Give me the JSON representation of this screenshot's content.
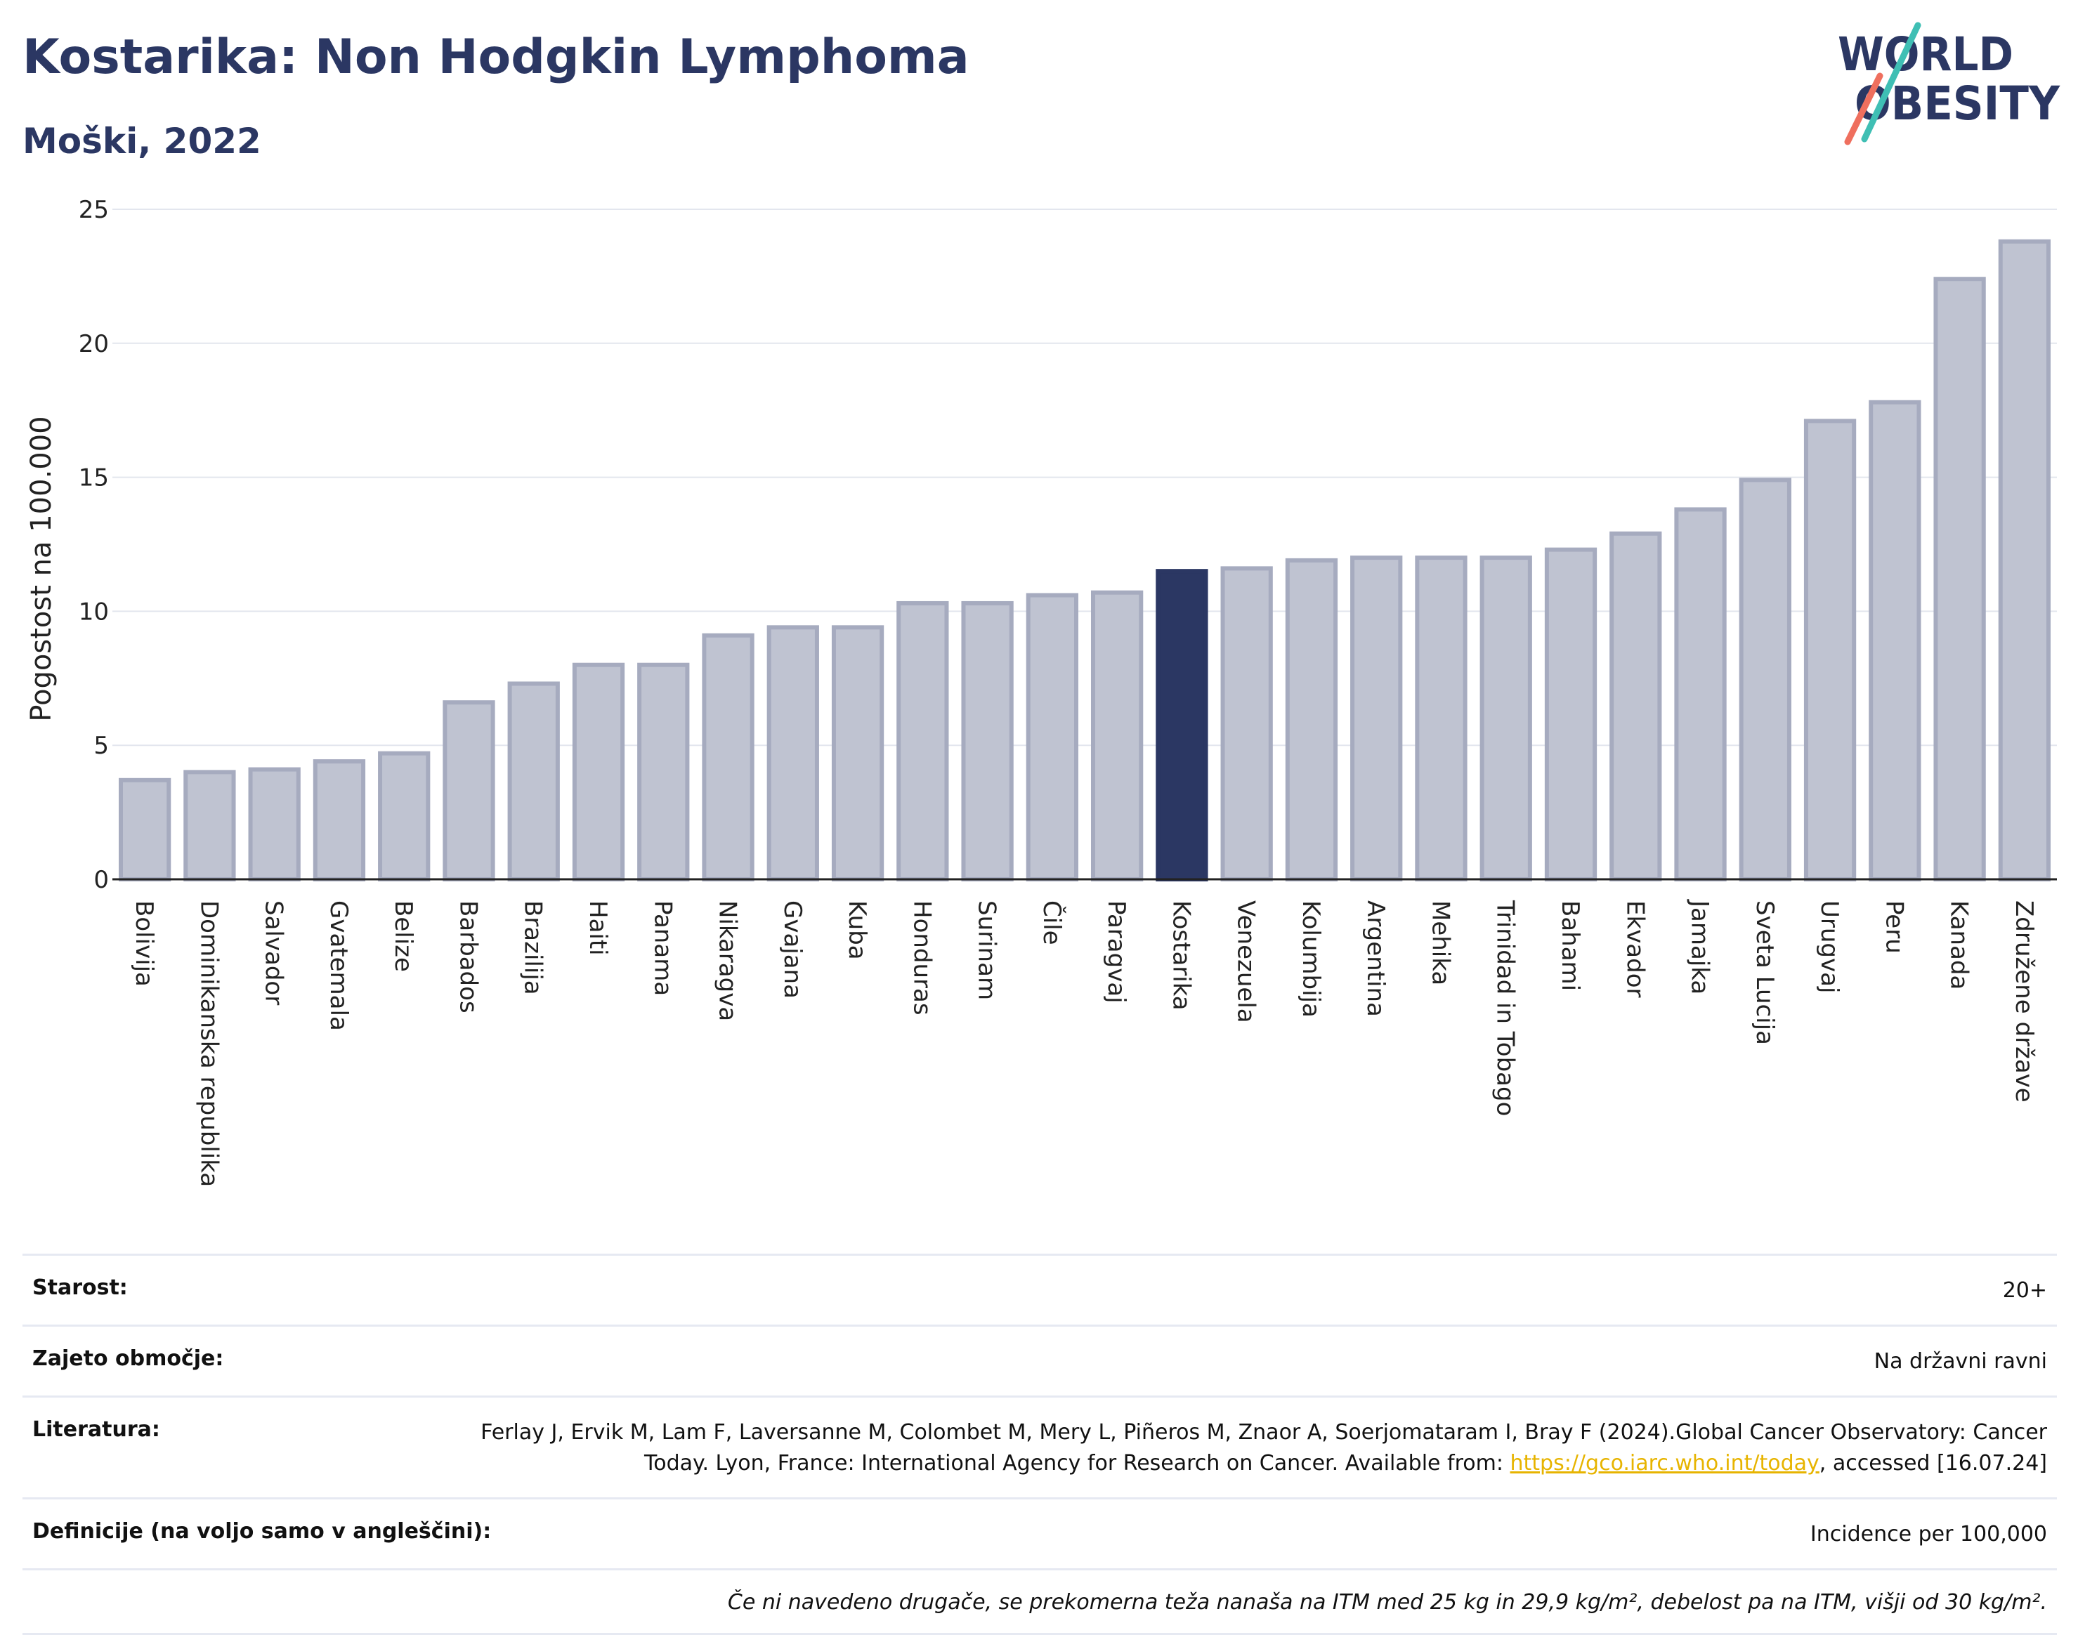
{
  "header": {
    "title": "Kostarika: Non Hodgkin Lymphoma",
    "subtitle": "Moški, 2022",
    "logo_line1": "WORLD",
    "logo_line2": "OBESITY"
  },
  "colors": {
    "bar": "#bfc3d1",
    "bar_border": "#a6abbf",
    "highlight": "#2b3763",
    "title": "#2b3763",
    "link": "#e7b400",
    "logo_teal": "#3fbfb4",
    "logo_coral": "#ef6f5e"
  },
  "chart_data": {
    "type": "bar",
    "ylabel": "Pogostost na 100.000",
    "ylim": [
      0,
      25
    ],
    "yticks": [
      0,
      5,
      10,
      15,
      20,
      25
    ],
    "grid": true,
    "highlight": "Kostarika",
    "categories": [
      "Bolivija",
      "Dominikanska republika",
      "Salvador",
      "Gvatemala",
      "Belize",
      "Barbados",
      "Brazilija",
      "Haiti",
      "Panama",
      "Nikaragva",
      "Gvajana",
      "Kuba",
      "Honduras",
      "Surinam",
      "Čile",
      "Paragvaj",
      "Kostarika",
      "Venezuela",
      "Kolumbija",
      "Argentina",
      "Mehika",
      "Trinidad in Tobago",
      "Bahami",
      "Ekvador",
      "Jamajka",
      "Sveta Lucija",
      "Urugvaj",
      "Peru",
      "Kanada",
      "Združene države"
    ],
    "values": [
      3.7,
      4.0,
      4.1,
      4.4,
      4.7,
      6.6,
      7.3,
      8.0,
      8.0,
      9.1,
      9.4,
      9.4,
      10.3,
      10.3,
      10.6,
      10.7,
      11.5,
      11.6,
      11.9,
      12.0,
      12.0,
      12.0,
      12.3,
      12.9,
      13.8,
      14.9,
      17.1,
      17.8,
      22.4,
      23.8
    ]
  },
  "info": {
    "age_label": "Starost:",
    "age_value": "20+",
    "coverage_label": "Zajeto območje:",
    "coverage_value": "Na državni ravni",
    "lit_label": "Literatura:",
    "lit_text_1": "Ferlay J, Ervik M, Lam F, Laversanne M, Colombet M, Mery L, Piñeros M, Znaor A, Soerjomataram I, Bray F (2024).Global Cancer Observatory: Cancer Today. Lyon, France: International Agency for Research on Cancer. Available from: ",
    "lit_link": "https://gco.iarc.who.int/today",
    "lit_text_2": ", accessed [16.07.24]",
    "def_label": "Definicije (na voljo samo v angleščini):",
    "def_value": "Incidence per 100,000",
    "note": "Če ni navedeno drugače, se prekomerna teža nanaša na ITM med 25 kg in 29,9 kg/m², debelost pa na ITM, višji od 30 kg/m²."
  }
}
